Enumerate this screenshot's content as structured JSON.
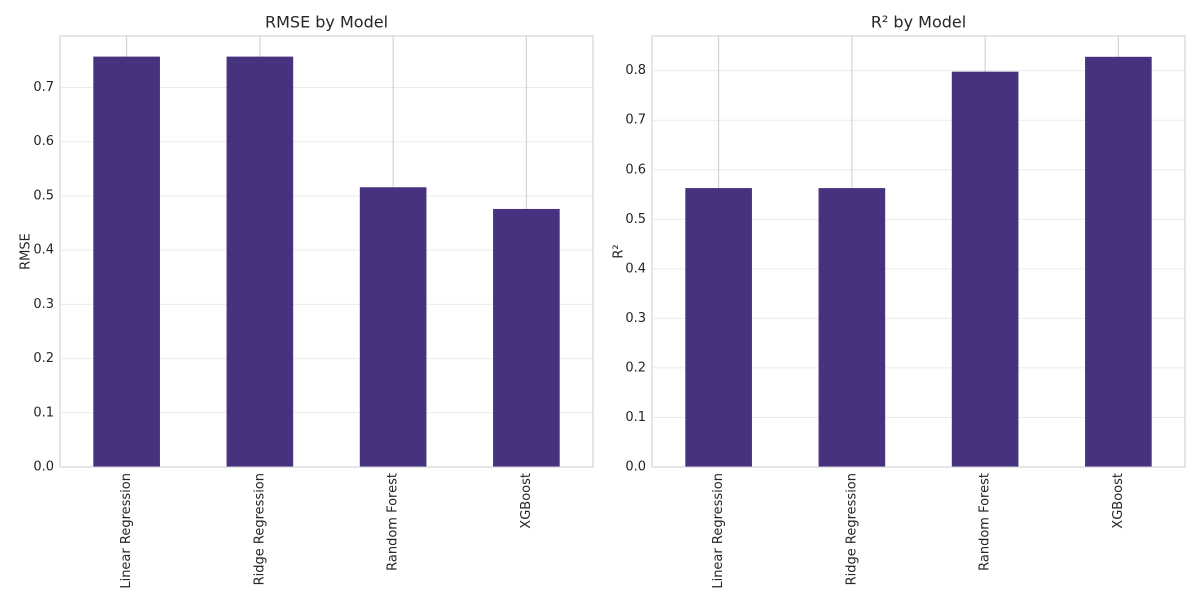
{
  "chart_data": [
    {
      "type": "bar",
      "title": "RMSE by Model",
      "xlabel": "",
      "ylabel": "RMSE",
      "categories": [
        "Linear Regression",
        "Ridge Regression",
        "Random Forest",
        "XGBoost"
      ],
      "values": [
        0.757,
        0.757,
        0.516,
        0.476
      ],
      "ylim": [
        0,
        0.795
      ],
      "yticks": [
        0.0,
        0.1,
        0.2,
        0.3,
        0.4,
        0.5,
        0.6,
        0.7
      ],
      "ytick_labels": [
        "0.0",
        "0.1",
        "0.2",
        "0.3",
        "0.4",
        "0.5",
        "0.6",
        "0.7"
      ],
      "bar_color": "#46327e",
      "grid": true
    },
    {
      "type": "bar",
      "title": "R² by Model",
      "xlabel": "",
      "ylabel": "R²",
      "categories": [
        "Linear Regression",
        "Ridge Regression",
        "Random Forest",
        "XGBoost"
      ],
      "values": [
        0.563,
        0.563,
        0.798,
        0.828
      ],
      "ylim": [
        0,
        0.87
      ],
      "yticks": [
        0.0,
        0.1,
        0.2,
        0.3,
        0.4,
        0.5,
        0.6,
        0.7,
        0.8
      ],
      "ytick_labels": [
        "0.0",
        "0.1",
        "0.2",
        "0.3",
        "0.4",
        "0.5",
        "0.6",
        "0.7",
        "0.8"
      ],
      "bar_color": "#46327e",
      "grid": true
    }
  ]
}
